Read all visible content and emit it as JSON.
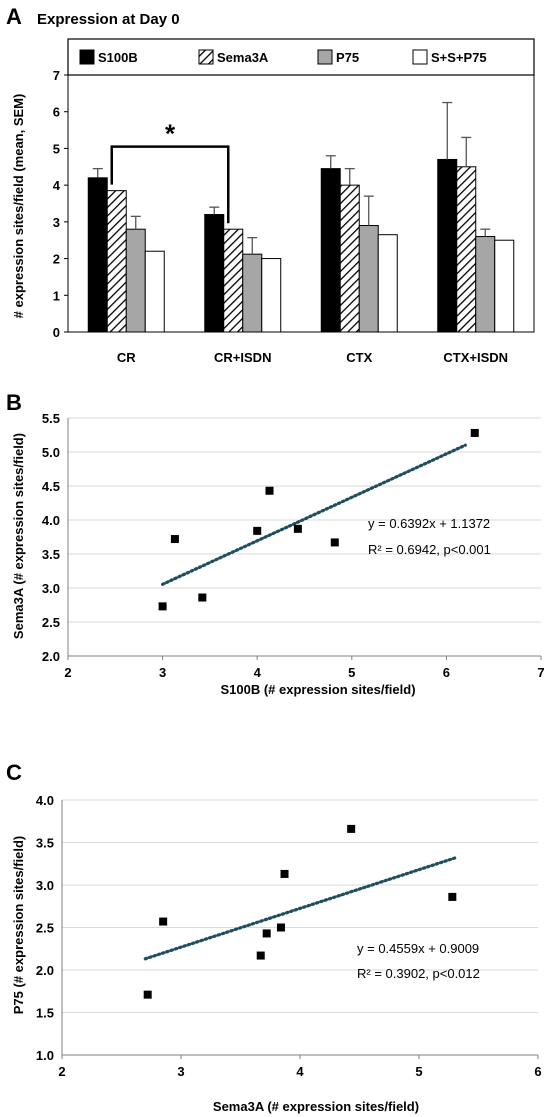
{
  "panels": {
    "A": {
      "letter": "A",
      "title": "Expression at Day 0",
      "ylabel": "# expression sites/field (mean, SEM)",
      "significance": "*"
    },
    "B": {
      "letter": "B",
      "xlabel": "S100B (# expression sites/field)",
      "ylabel": "Sema3A (# expression sites/field)",
      "equation": "y = 0.6392x + 1.1372",
      "r2": "R² = 0.6942, p<0.001"
    },
    "C": {
      "letter": "C",
      "xlabel": "Sema3A (# expression sites/field)",
      "ylabel": "P75 (# expression sites/field)",
      "equation": "y = 0.4559x + 0.9009",
      "r2": "R² = 0.3902, p<0.012"
    }
  },
  "colors": {
    "S100B": "#000000",
    "Sema3A": "hatched",
    "P75": "#a6a6a6",
    "S+S+P75": "#ffffff",
    "trendline": "#1f4e5f",
    "points": "#000000"
  },
  "chart_data": [
    {
      "type": "bar",
      "title": "Expression at Day 0",
      "ylabel": "# expression sites/field (mean, SEM)",
      "xlabel": "",
      "ylim": [
        0,
        7
      ],
      "yticks": [
        "0",
        "1",
        "2",
        "3",
        "4",
        "5",
        "6",
        "7"
      ],
      "categories": [
        "CR",
        "CR+ISDN",
        "CTX",
        "CTX+ISDN"
      ],
      "legend_position": "top",
      "series": [
        {
          "name": "S100B",
          "values": [
            4.2,
            3.2,
            4.45,
            4.7
          ],
          "errors": [
            0.25,
            0.2,
            0.35,
            1.55
          ]
        },
        {
          "name": "Sema3A",
          "values": [
            3.85,
            2.8,
            4.0,
            4.5
          ],
          "errors": [
            0.0,
            0.0,
            0.45,
            0.8
          ]
        },
        {
          "name": "P75",
          "values": [
            2.8,
            2.12,
            2.9,
            2.6
          ],
          "errors": [
            0.35,
            0.45,
            0.8,
            0.2
          ]
        },
        {
          "name": "S+S+P75",
          "values": [
            2.2,
            2.0,
            2.65,
            2.5
          ],
          "errors": [
            0,
            0,
            0,
            0
          ]
        }
      ],
      "significance": {
        "label": "*",
        "between": [
          "CR",
          "CR+ISDN"
        ],
        "series": "Sema3A"
      }
    },
    {
      "type": "scatter",
      "xlabel": "S100B (# expression sites/field)",
      "ylabel": "Sema3A (# expression sites/field)",
      "xlim": [
        2,
        7
      ],
      "ylim": [
        2.0,
        5.5
      ],
      "xticks": [
        "2",
        "3",
        "4",
        "5",
        "6",
        "7"
      ],
      "yticks": [
        "2.0",
        "2.5",
        "3.0",
        "3.5",
        "4.0",
        "4.5",
        "5.0",
        "5.5"
      ],
      "grid": "horizontal",
      "points": [
        {
          "x": 3.0,
          "y": 2.73
        },
        {
          "x": 3.13,
          "y": 3.72
        },
        {
          "x": 3.42,
          "y": 2.86
        },
        {
          "x": 4.0,
          "y": 3.84
        },
        {
          "x": 4.13,
          "y": 4.43
        },
        {
          "x": 4.43,
          "y": 3.87
        },
        {
          "x": 4.82,
          "y": 3.67
        },
        {
          "x": 6.3,
          "y": 5.28
        }
      ],
      "trendline": {
        "slope": 0.6392,
        "intercept": 1.1372,
        "x_range": [
          3.0,
          6.2
        ],
        "style": "dotted"
      },
      "equation": "y = 0.6392x + 1.1372",
      "r2": "R² = 0.6942, p<0.001"
    },
    {
      "type": "scatter",
      "xlabel": "Sema3A (# expression sites/field)",
      "ylabel": "P75 (# expression sites/field)",
      "xlim": [
        2,
        6
      ],
      "ylim": [
        1.0,
        4.0
      ],
      "xticks": [
        "2",
        "3",
        "4",
        "5",
        "6"
      ],
      "yticks": [
        "1.0",
        "1.5",
        "2.0",
        "2.5",
        "3.0",
        "3.5",
        "4.0"
      ],
      "grid": "horizontal",
      "points": [
        {
          "x": 2.72,
          "y": 1.71
        },
        {
          "x": 2.85,
          "y": 2.57
        },
        {
          "x": 3.67,
          "y": 2.17
        },
        {
          "x": 3.72,
          "y": 2.43
        },
        {
          "x": 3.84,
          "y": 2.5
        },
        {
          "x": 3.87,
          "y": 3.13
        },
        {
          "x": 4.43,
          "y": 3.66
        },
        {
          "x": 5.28,
          "y": 2.86
        }
      ],
      "trendline": {
        "slope": 0.4559,
        "intercept": 0.9009,
        "x_range": [
          2.7,
          5.3
        ],
        "style": "dotted"
      },
      "equation": "y = 0.4559x + 0.9009",
      "r2": "R² = 0.3902, p<0.012"
    }
  ]
}
